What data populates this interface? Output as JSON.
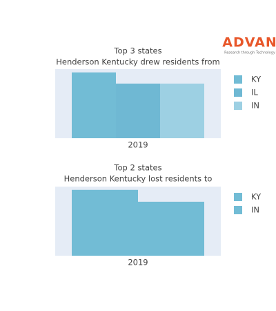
{
  "logo": {
    "name": "ADVAN",
    "tagline": "Research through Technology"
  },
  "chart_data": [
    {
      "type": "bar",
      "title": "Top 3 states",
      "subtitle": "Henderson Kentucky drew residents from",
      "categories": [
        "2019"
      ],
      "series": [
        {
          "name": "KY",
          "color": "#72bcd5",
          "values": [
            100
          ]
        },
        {
          "name": "IL",
          "color": "#6fb8d3",
          "values": [
            83
          ]
        },
        {
          "name": "IN",
          "color": "#9dd0e3",
          "values": [
            83
          ]
        }
      ],
      "ylim": [
        0,
        105
      ]
    },
    {
      "type": "bar",
      "title": "Top 2 states",
      "subtitle": "Henderson Kentucky lost residents to",
      "categories": [
        "2019"
      ],
      "series": [
        {
          "name": "KY",
          "color": "#72bcd5",
          "values": [
            100
          ]
        },
        {
          "name": "IN",
          "color": "#72bcd5",
          "values": [
            82
          ]
        }
      ],
      "ylim": [
        0,
        105
      ]
    }
  ]
}
